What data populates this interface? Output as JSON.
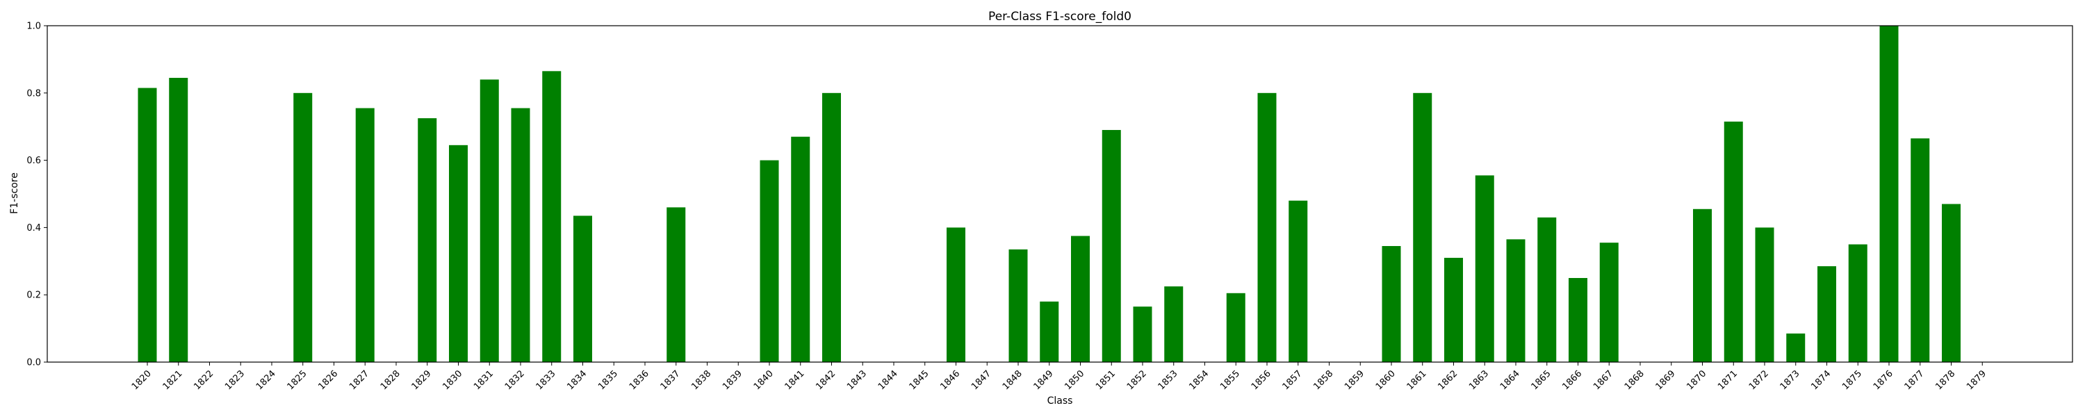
{
  "chart_data": {
    "type": "bar",
    "title": "Per-Class F1-score_fold0",
    "xlabel": "Class",
    "ylabel": "F1-score",
    "ylim": [
      0,
      1.0
    ],
    "yticks": [
      "0.0",
      "0.2",
      "0.4",
      "0.6",
      "0.8",
      "1.0"
    ],
    "grid": false,
    "bar_color": "#008000",
    "categories": [
      "1820",
      "1821",
      "1822",
      "1823",
      "1824",
      "1825",
      "1826",
      "1827",
      "1828",
      "1829",
      "1830",
      "1831",
      "1832",
      "1833",
      "1834",
      "1835",
      "1836",
      "1837",
      "1838",
      "1839",
      "1840",
      "1841",
      "1842",
      "1843",
      "1844",
      "1845",
      "1846",
      "1847",
      "1848",
      "1849",
      "1850",
      "1851",
      "1852",
      "1853",
      "1854",
      "1855",
      "1856",
      "1857",
      "1858",
      "1859",
      "1860",
      "1861",
      "1862",
      "1863",
      "1864",
      "1865",
      "1866",
      "1867",
      "1868",
      "1869",
      "1870",
      "1871",
      "1872",
      "1873",
      "1874",
      "1875",
      "1876",
      "1877",
      "1878",
      "1879"
    ],
    "values": [
      0.815,
      0.845,
      0,
      0,
      0,
      0.8,
      0,
      0.755,
      0,
      0.725,
      0.645,
      0.84,
      0.755,
      0.865,
      0.435,
      0,
      0,
      0.46,
      0,
      0,
      0.6,
      0.67,
      0.8,
      0,
      0,
      0,
      0.4,
      0,
      0.335,
      0.18,
      0.375,
      0.69,
      0.165,
      0.225,
      0,
      0.205,
      0.8,
      0.48,
      0,
      0,
      0.345,
      0.8,
      0.31,
      0.555,
      0.365,
      0.43,
      0.25,
      0.355,
      0,
      0,
      0.455,
      0.715,
      0.4,
      0.085,
      0.285,
      0.35,
      1.0,
      0.665,
      0.47,
      0
    ]
  }
}
